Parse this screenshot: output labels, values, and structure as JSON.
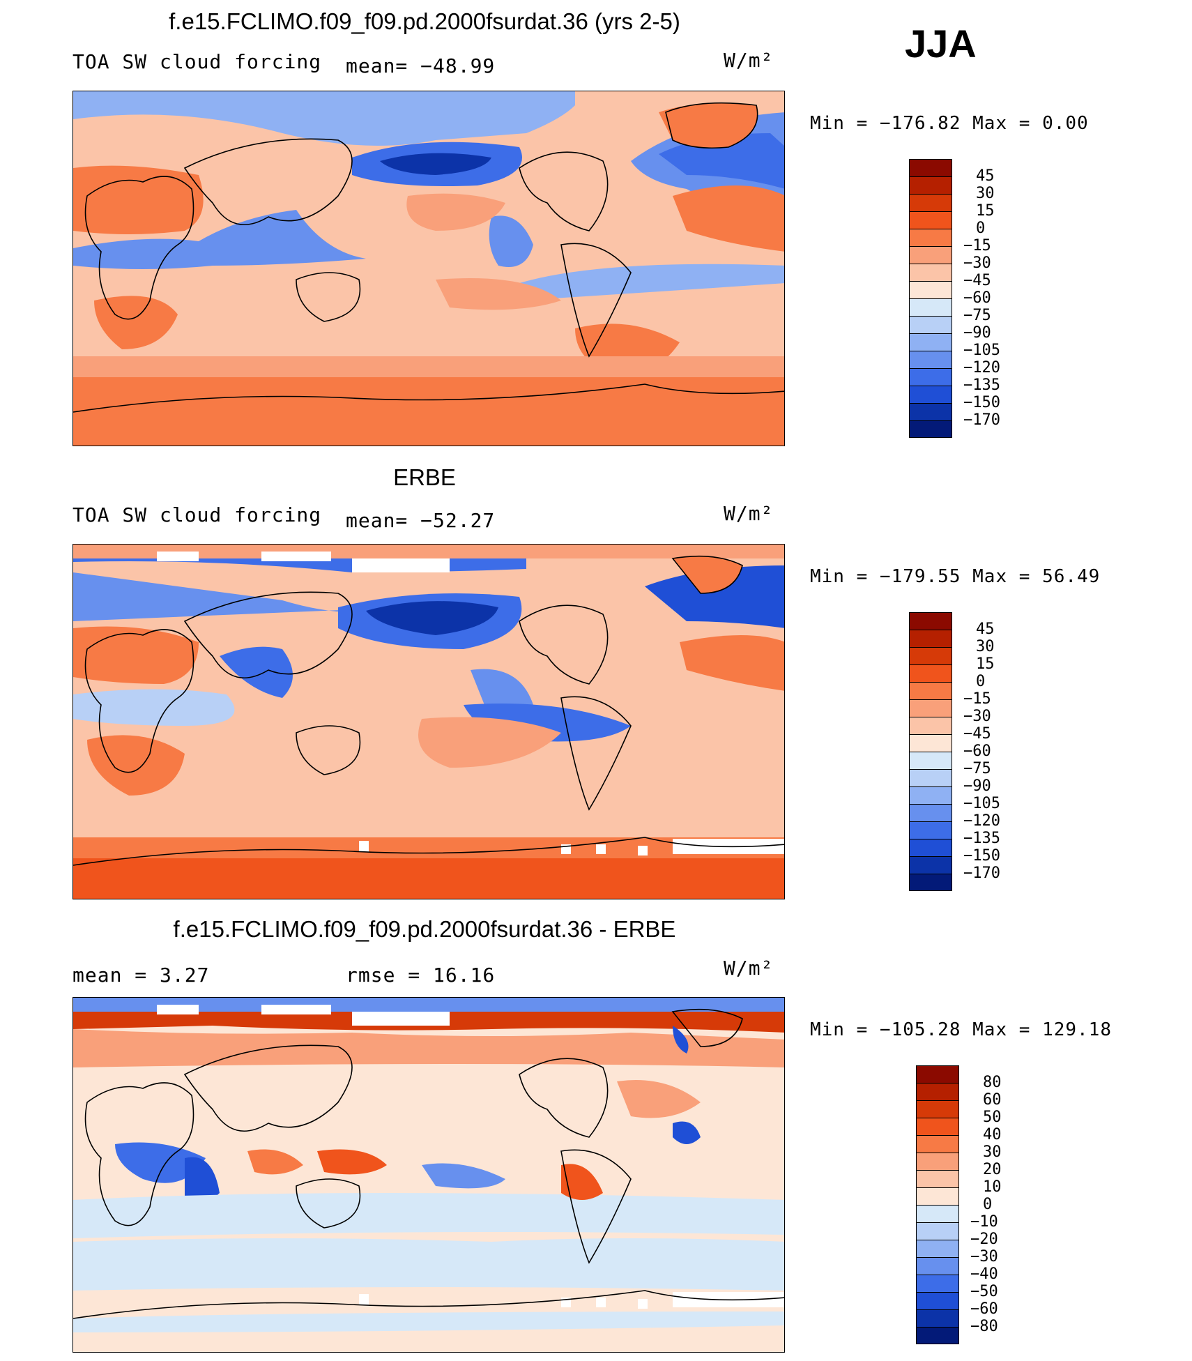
{
  "season": "JJA",
  "units": "W/m²",
  "panels": [
    {
      "title": "f.e15.FCLIMO.f09_f09.pd.2000fsurdat.36 (yrs 2-5)",
      "variable": "TOA SW cloud forcing",
      "stat1": "mean= −48.99",
      "stat2": "",
      "minmax": "Min = −176.82  Max =    0.00",
      "levels": [
        "45",
        "30",
        "15",
        "0",
        "−15",
        "−30",
        "−45",
        "−60",
        "−75",
        "−90",
        "−105",
        "−120",
        "−135",
        "−150",
        "−170"
      ],
      "palette": [
        "#8b0a00",
        "#b52000",
        "#d63a08",
        "#f0541c",
        "#f77a45",
        "#f9a07a",
        "#fbc4a8",
        "#fde6d6",
        "#d6e8f8",
        "#b8d0f6",
        "#8fb1f3",
        "#6790ee",
        "#3d6de8",
        "#1f4fd6",
        "#0c33a8",
        "#031a78"
      ]
    },
    {
      "title": "ERBE",
      "variable": "TOA SW cloud forcing",
      "stat1": "mean= −52.27",
      "stat2": "",
      "minmax": "Min = −179.55  Max =   56.49",
      "levels": [
        "45",
        "30",
        "15",
        "0",
        "−15",
        "−30",
        "−45",
        "−60",
        "−75",
        "−90",
        "−105",
        "−120",
        "−135",
        "−150",
        "−170"
      ],
      "palette": [
        "#8b0a00",
        "#b52000",
        "#d63a08",
        "#f0541c",
        "#f77a45",
        "#f9a07a",
        "#fbc4a8",
        "#fde6d6",
        "#d6e8f8",
        "#b8d0f6",
        "#8fb1f3",
        "#6790ee",
        "#3d6de8",
        "#1f4fd6",
        "#0c33a8",
        "#031a78"
      ]
    },
    {
      "title": "f.e15.FCLIMO.f09_f09.pd.2000fsurdat.36 - ERBE",
      "variable": "mean =    3.27",
      "stat1": "rmse =   16.16",
      "stat2": "",
      "minmax": "Min = −105.28  Max =  129.18",
      "levels": [
        "80",
        "60",
        "50",
        "40",
        "30",
        "20",
        "10",
        "0",
        "−10",
        "−20",
        "−30",
        "−40",
        "−50",
        "−60",
        "−80"
      ],
      "palette": [
        "#8b0a00",
        "#b52000",
        "#d63a08",
        "#f0541c",
        "#f77a45",
        "#f9a07a",
        "#fbc4a8",
        "#fde6d6",
        "#d6e8f8",
        "#b8d0f6",
        "#8fb1f3",
        "#6790ee",
        "#3d6de8",
        "#1f4fd6",
        "#0c33a8",
        "#031a78"
      ]
    }
  ]
}
